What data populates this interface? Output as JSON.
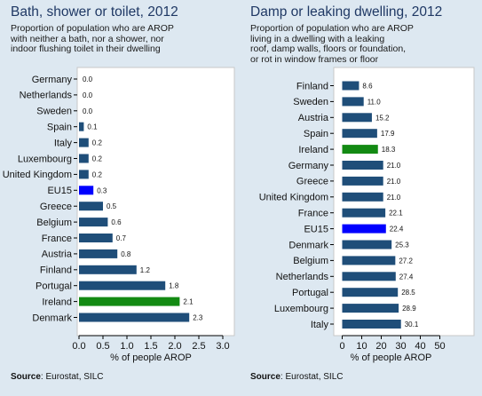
{
  "chart_data": [
    {
      "type": "bar",
      "orientation": "horizontal",
      "title": "Bath, shower or toilet, 2012",
      "subtitle": "Proportion of population who are AROP\nwith neither a bath, nor a shower, nor\nindoor flushing toilet in their dwelling",
      "xlabel": "% of people AROP",
      "ylabel": "",
      "xlim": [
        0,
        3.0
      ],
      "xticks": [
        "0.0",
        "0.5",
        "1.0",
        "1.5",
        "2.0",
        "2.5",
        "3.0"
      ],
      "grid": false,
      "categories": [
        "Germany",
        "Netherlands",
        "Sweden",
        "Spain",
        "Italy",
        "Luxembourg",
        "United Kingdom",
        "EU15",
        "Greece",
        "Belgium",
        "France",
        "Austria",
        "Finland",
        "Portugal",
        "Ireland",
        "Denmark"
      ],
      "values": [
        0.0,
        0.0,
        0.0,
        0.1,
        0.2,
        0.2,
        0.2,
        0.3,
        0.5,
        0.6,
        0.7,
        0.8,
        1.2,
        1.8,
        2.1,
        2.3
      ],
      "value_labels": [
        "0.0",
        "0.0",
        "0.0",
        "0.1",
        "0.2",
        "0.2",
        "0.2",
        "0.3",
        "0.5",
        "0.6",
        "0.7",
        "0.8",
        "1.2",
        "1.8",
        "2.1",
        "2.3"
      ],
      "highlight_colors": {
        "EU15": "#0000ff",
        "Ireland": "#138a13"
      },
      "source_label": "Source",
      "source_text": ": Eurostat, SILC"
    },
    {
      "type": "bar",
      "orientation": "horizontal",
      "title": "Damp or leaking dwelling, 2012",
      "subtitle": "Proportion of population who are AROP\nliving in a dwelling with a leaking\nroof, damp walls, floors or foundation,\nor rot in window frames or floor",
      "xlabel": "% of people AROP",
      "ylabel": "",
      "xlim": [
        0,
        50
      ],
      "xticks": [
        "0",
        "10",
        "20",
        "30",
        "40",
        "50"
      ],
      "grid": false,
      "categories": [
        "Finland",
        "Sweden",
        "Austria",
        "Spain",
        "Ireland",
        "Germany",
        "Greece",
        "United Kingdom",
        "France",
        "EU15",
        "Denmark",
        "Belgium",
        "Netherlands",
        "Portugal",
        "Luxembourg",
        "Italy"
      ],
      "values": [
        8.6,
        11.0,
        15.2,
        17.9,
        18.3,
        21.0,
        21.0,
        21.0,
        22.1,
        22.4,
        25.3,
        27.2,
        27.4,
        28.5,
        28.9,
        30.1
      ],
      "value_labels": [
        "8.6",
        "11.0",
        "15.2",
        "17.9",
        "18.3",
        "21.0",
        "21.0",
        "21.0",
        "22.1",
        "22.4",
        "25.3",
        "27.2",
        "27.4",
        "28.5",
        "28.9",
        "30.1"
      ],
      "highlight_colors": {
        "EU15": "#0000ff",
        "Ireland": "#138a13"
      },
      "source_label": "Source",
      "source_text": ": Eurostat, SILC"
    }
  ],
  "colors": {
    "default_bar": "#1f4e79",
    "plot_background": "#ffffff",
    "page_background": "#dde8f1",
    "title": "#1f3864"
  }
}
